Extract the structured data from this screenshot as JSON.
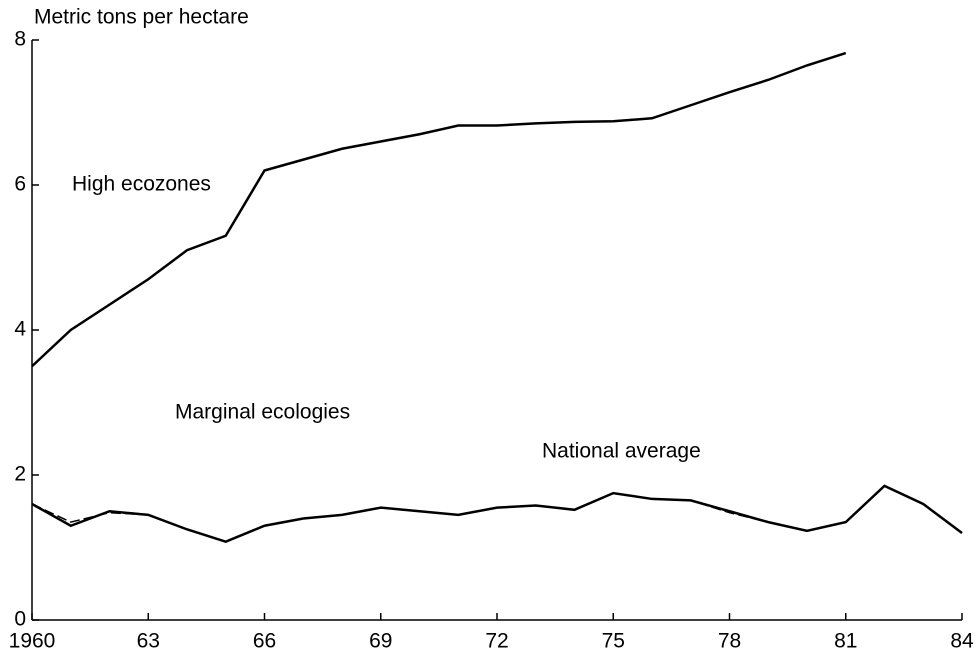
{
  "chart_data": {
    "type": "line",
    "y_axis_label": "Metric tons per hectare",
    "x": [
      1960,
      1961,
      1962,
      1963,
      1964,
      1965,
      1966,
      1967,
      1968,
      1969,
      1970,
      1971,
      1972,
      1973,
      1974,
      1975,
      1976,
      1977,
      1978,
      1979,
      1980,
      1981,
      1982,
      1983,
      1984
    ],
    "series": [
      {
        "name": "High ecozones",
        "color": "#000000",
        "values": [
          3.5,
          4.0,
          4.35,
          4.7,
          5.1,
          5.3,
          6.2,
          6.35,
          6.5,
          6.6,
          6.7,
          6.82,
          6.82,
          6.85,
          6.87,
          6.88,
          6.92,
          7.1,
          7.28,
          7.45,
          7.65,
          7.82,
          null,
          null,
          null
        ]
      },
      {
        "name": "Marginal ecologies",
        "color": "#000000",
        "dash": true,
        "values": [
          1.6,
          1.35,
          1.48,
          1.45,
          1.25,
          1.08,
          1.3,
          1.4,
          1.45,
          1.55,
          1.5,
          1.45,
          1.55,
          1.58,
          1.52,
          1.75,
          1.67,
          1.65,
          1.48,
          1.35,
          1.23,
          1.35,
          1.85,
          1.6,
          1.2
        ]
      },
      {
        "name": "National average",
        "color": "#000000",
        "values": [
          1.6,
          1.3,
          1.5,
          1.45,
          1.25,
          1.08,
          1.3,
          1.4,
          1.45,
          1.55,
          1.5,
          1.45,
          1.55,
          1.58,
          1.52,
          1.75,
          1.67,
          1.65,
          1.5,
          1.35,
          1.23,
          1.35,
          1.85,
          1.6,
          1.2
        ]
      }
    ],
    "xlim": [
      1960,
      1984
    ],
    "xticks": [
      {
        "value": 1960,
        "label": "1960"
      },
      {
        "value": 1963,
        "label": "63"
      },
      {
        "value": 1966,
        "label": "66"
      },
      {
        "value": 1969,
        "label": "69"
      },
      {
        "value": 1972,
        "label": "72"
      },
      {
        "value": 1975,
        "label": "75"
      },
      {
        "value": 1978,
        "label": "78"
      },
      {
        "value": 1981,
        "label": "81"
      },
      {
        "value": 1984,
        "label": "84"
      }
    ],
    "ylim": [
      0,
      8
    ],
    "yticks": [
      0,
      2,
      4,
      6,
      8
    ],
    "grid": false
  }
}
